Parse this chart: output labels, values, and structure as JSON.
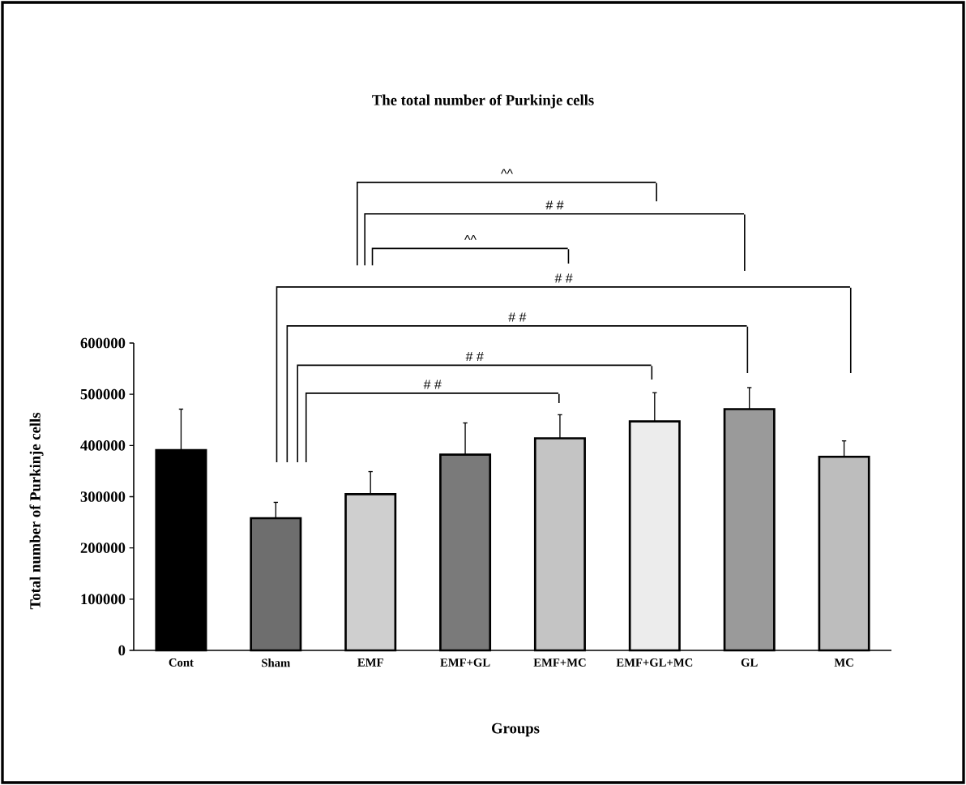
{
  "chart_data": {
    "type": "bar",
    "title": "The total number of Purkinje cells",
    "xlabel": "Groups",
    "ylabel": "Total number of Purkinje cells",
    "categories": [
      "Cont",
      "Sham",
      "EMF",
      "EMF+GL",
      "EMF+MC",
      "EMF+GL+MC",
      "GL",
      "MC"
    ],
    "values": [
      391000,
      258000,
      305000,
      382000,
      414000,
      447000,
      471000,
      378000
    ],
    "errors": [
      80000,
      31000,
      44000,
      62000,
      46000,
      56000,
      42000,
      31000
    ],
    "colors": [
      "#000000",
      "#6e6e6e",
      "#cfcfcf",
      "#7a7a7a",
      "#c4c4c4",
      "#ececec",
      "#9a9a9a",
      "#bdbdbd"
    ],
    "ylim": [
      0,
      600000
    ],
    "yticks": [
      0,
      100000,
      200000,
      300000,
      400000,
      500000,
      600000
    ],
    "annotations": [
      "^^",
      "# #",
      "^^",
      "# #",
      "# #",
      "# #",
      "# #"
    ]
  }
}
